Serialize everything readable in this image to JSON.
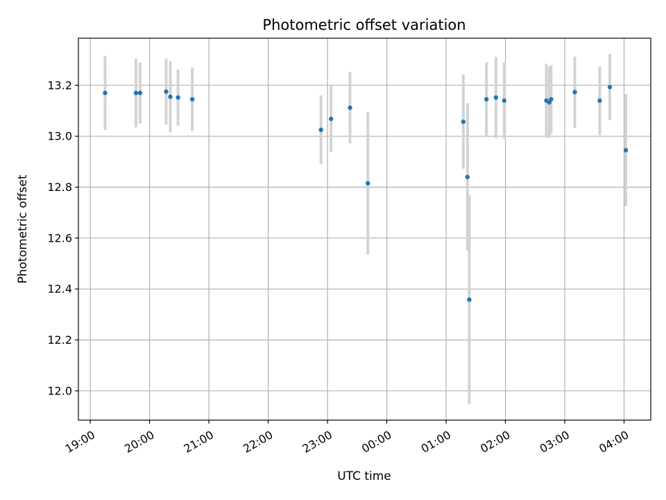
{
  "chart_data": {
    "type": "scatter",
    "title": "Photometric offset variation",
    "xlabel": "UTC time",
    "ylabel": "Photometric offset",
    "grid": true,
    "xlim": [
      -0.2,
      9.45
    ],
    "ylim": [
      11.885,
      13.385
    ],
    "x_ticks": [
      {
        "value": 0,
        "label": "19:00"
      },
      {
        "value": 1,
        "label": "20:00"
      },
      {
        "value": 2,
        "label": "21:00"
      },
      {
        "value": 3,
        "label": "22:00"
      },
      {
        "value": 4,
        "label": "23:00"
      },
      {
        "value": 5,
        "label": "00:00"
      },
      {
        "value": 6,
        "label": "01:00"
      },
      {
        "value": 7,
        "label": "02:00"
      },
      {
        "value": 8,
        "label": "03:00"
      },
      {
        "value": 9,
        "label": "04:00"
      }
    ],
    "y_ticks": [
      {
        "value": 12.0,
        "label": "12.0"
      },
      {
        "value": 12.2,
        "label": "12.2"
      },
      {
        "value": 12.4,
        "label": "12.4"
      },
      {
        "value": 12.6,
        "label": "12.6"
      },
      {
        "value": 12.8,
        "label": "12.8"
      },
      {
        "value": 13.0,
        "label": "13.0"
      },
      {
        "value": 13.2,
        "label": "13.2"
      }
    ],
    "x_unit": "hours since 19:00 UTC",
    "point_color": "#1f77b4",
    "errorbar_color": "#d3d3d3",
    "points": [
      {
        "x": 0.25,
        "y": 13.17,
        "err": 0.145
      },
      {
        "x": 0.77,
        "y": 13.17,
        "err": 0.135
      },
      {
        "x": 0.84,
        "y": 13.17,
        "err": 0.12
      },
      {
        "x": 1.28,
        "y": 13.175,
        "err": 0.13
      },
      {
        "x": 1.35,
        "y": 13.155,
        "err": 0.14
      },
      {
        "x": 1.48,
        "y": 13.152,
        "err": 0.11
      },
      {
        "x": 1.72,
        "y": 13.145,
        "err": 0.125
      },
      {
        "x": 3.89,
        "y": 13.025,
        "err": 0.135
      },
      {
        "x": 4.06,
        "y": 13.068,
        "err": 0.13
      },
      {
        "x": 4.38,
        "y": 13.112,
        "err": 0.14
      },
      {
        "x": 4.68,
        "y": 12.815,
        "err": 0.28
      },
      {
        "x": 6.29,
        "y": 13.057,
        "err": 0.185
      },
      {
        "x": 6.36,
        "y": 12.84,
        "err": 0.29
      },
      {
        "x": 6.39,
        "y": 12.358,
        "err": 0.41
      },
      {
        "x": 6.68,
        "y": 13.145,
        "err": 0.145
      },
      {
        "x": 6.84,
        "y": 13.152,
        "err": 0.16
      },
      {
        "x": 6.98,
        "y": 13.14,
        "err": 0.15
      },
      {
        "x": 7.69,
        "y": 13.14,
        "err": 0.145
      },
      {
        "x": 7.74,
        "y": 13.133,
        "err": 0.14
      },
      {
        "x": 7.77,
        "y": 13.145,
        "err": 0.135
      },
      {
        "x": 8.17,
        "y": 13.173,
        "err": 0.14
      },
      {
        "x": 8.59,
        "y": 13.14,
        "err": 0.135
      },
      {
        "x": 8.76,
        "y": 13.193,
        "err": 0.13
      },
      {
        "x": 9.03,
        "y": 12.945,
        "err": 0.22
      }
    ]
  }
}
